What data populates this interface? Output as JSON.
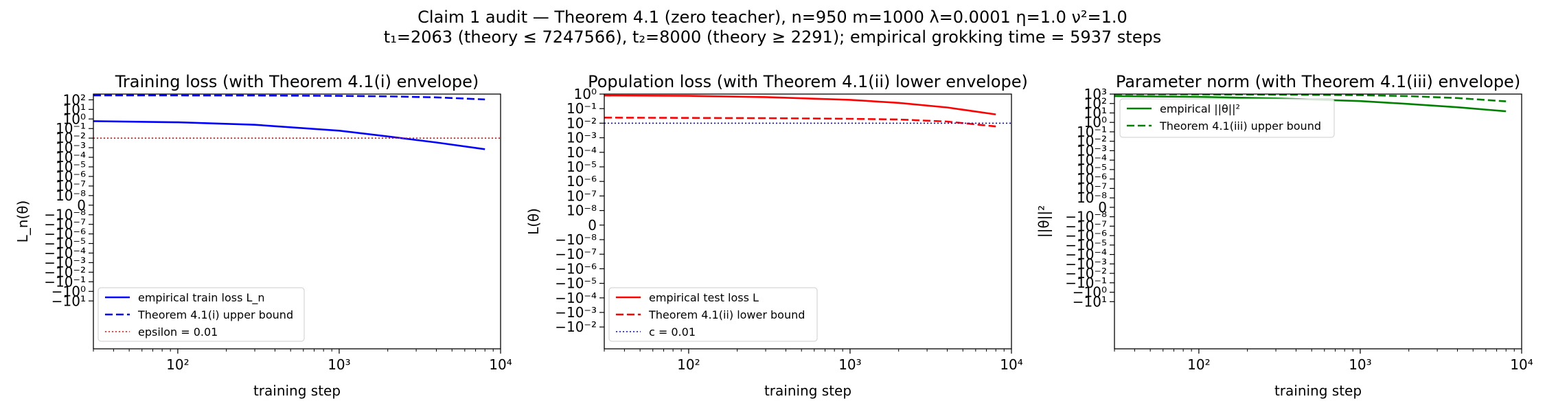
{
  "figure": {
    "suptitle_line1": "Claim 1 audit — Theorem 4.1 (zero teacher), n=950 m=1000 λ=0.0001 η=1.0 ν²=1.0",
    "suptitle_line2": "t₁=2063 (theory ≤ 7247566), t₂=8000 (theory ≥ 2291); empirical grokking time = 5937 steps"
  },
  "chart_data": [
    {
      "type": "line",
      "title": "Training loss (with Theorem 4.1(i) envelope)",
      "xlabel": "training step",
      "ylabel": "L_n(θ)",
      "xscale": "log",
      "yscale": "symlog",
      "xlim": [
        30,
        10000
      ],
      "xticks": [
        {
          "value": 100,
          "label": "10²"
        },
        {
          "value": 1000,
          "label": "10³"
        },
        {
          "value": 10000,
          "label": "10⁴"
        }
      ],
      "yticks": [
        {
          "value": 100,
          "label": "10²"
        },
        {
          "value": 10,
          "label": "10¹"
        },
        {
          "value": 1,
          "label": "10⁰"
        },
        {
          "value": 0.1,
          "label": "10⁻¹"
        },
        {
          "value": 0.01,
          "label": "10⁻²"
        },
        {
          "value": 0.001,
          "label": "10⁻³"
        },
        {
          "value": 0.0001,
          "label": "10⁻⁴"
        },
        {
          "value": 1e-05,
          "label": "10⁻⁵"
        },
        {
          "value": 1e-06,
          "label": "10⁻⁶"
        },
        {
          "value": 1e-07,
          "label": "10⁻⁷"
        },
        {
          "value": 1e-08,
          "label": "10⁻⁸"
        },
        {
          "value": 0,
          "label": "0"
        },
        {
          "value": -1e-08,
          "label": "−10⁻⁸"
        },
        {
          "value": -1e-07,
          "label": "−10⁻⁷"
        },
        {
          "value": -1e-06,
          "label": "−10⁻⁶"
        },
        {
          "value": -1e-05,
          "label": "−10⁻⁵"
        },
        {
          "value": -0.0001,
          "label": "−10⁻⁴"
        },
        {
          "value": -0.001,
          "label": "−10⁻³"
        },
        {
          "value": -0.01,
          "label": "−10⁻²"
        },
        {
          "value": -0.1,
          "label": "−10⁻¹"
        },
        {
          "value": -1,
          "label": "−10⁰"
        },
        {
          "value": -10,
          "label": "−10¹"
        }
      ],
      "legend_position": "lower-left",
      "series": [
        {
          "name": "empirical train loss L_n",
          "color": "#0000ff",
          "style": "solid",
          "x": [
            30,
            100,
            300,
            1000,
            2000,
            4000,
            8000
          ],
          "y": [
            0.6,
            0.45,
            0.25,
            0.06,
            0.015,
            0.0035,
            0.0007
          ]
        },
        {
          "name": "Theorem 4.1(i) upper bound",
          "color": "#0000ff",
          "style": "dashed",
          "x": [
            30,
            100,
            300,
            1000,
            2000,
            4000,
            8000
          ],
          "y": [
            290,
            288,
            280,
            260,
            230,
            180,
            110
          ]
        },
        {
          "name": "epsilon = 0.01",
          "color": "#ff0000",
          "style": "dotted",
          "x": [
            30,
            10000
          ],
          "y": [
            0.01,
            0.01
          ]
        }
      ]
    },
    {
      "type": "line",
      "title": "Population loss (with Theorem 4.1(ii) lower envelope)",
      "xlabel": "training step",
      "ylabel": "L(θ)",
      "xscale": "log",
      "yscale": "symlog",
      "xlim": [
        30,
        10000
      ],
      "xticks": [
        {
          "value": 100,
          "label": "10²"
        },
        {
          "value": 1000,
          "label": "10³"
        },
        {
          "value": 10000,
          "label": "10⁴"
        }
      ],
      "yticks": [
        {
          "value": 1,
          "label": "10⁰"
        },
        {
          "value": 0.1,
          "label": "10⁻¹"
        },
        {
          "value": 0.01,
          "label": "10⁻²"
        },
        {
          "value": 0.001,
          "label": "10⁻³"
        },
        {
          "value": 0.0001,
          "label": "10⁻⁴"
        },
        {
          "value": 1e-05,
          "label": "10⁻⁵"
        },
        {
          "value": 1e-06,
          "label": "10⁻⁶"
        },
        {
          "value": 1e-07,
          "label": "10⁻⁷"
        },
        {
          "value": 1e-08,
          "label": "10⁻⁸"
        },
        {
          "value": 0,
          "label": "0"
        },
        {
          "value": -1e-08,
          "label": "−10⁻⁸"
        },
        {
          "value": -1e-07,
          "label": "−10⁻⁷"
        },
        {
          "value": -1e-06,
          "label": "−10⁻⁶"
        },
        {
          "value": -1e-05,
          "label": "−10⁻⁵"
        },
        {
          "value": -0.0001,
          "label": "−10⁻⁴"
        },
        {
          "value": -0.001,
          "label": "−10⁻³"
        },
        {
          "value": -0.01,
          "label": "−10⁻²"
        }
      ],
      "legend_position": "lower-left",
      "series": [
        {
          "name": "empirical test loss L",
          "color": "#ff0000",
          "style": "solid",
          "x": [
            30,
            100,
            300,
            1000,
            2000,
            4000,
            8000
          ],
          "y": [
            0.8,
            0.75,
            0.62,
            0.4,
            0.25,
            0.12,
            0.04
          ]
        },
        {
          "name": "Theorem 4.1(ii) lower bound",
          "color": "#ff0000",
          "style": "dashed",
          "x": [
            30,
            100,
            300,
            1000,
            2000,
            4000,
            8000
          ],
          "y": [
            0.024,
            0.023,
            0.022,
            0.02,
            0.018,
            0.013,
            0.006
          ]
        },
        {
          "name": "c = 0.01",
          "color": "#0000ff",
          "style": "dotted",
          "x": [
            30,
            10000
          ],
          "y": [
            0.01,
            0.01
          ]
        }
      ]
    },
    {
      "type": "line",
      "title": "Parameter norm (with Theorem 4.1(iii) envelope)",
      "xlabel": "training step",
      "ylabel": "||θ||²",
      "xscale": "log",
      "yscale": "symlog",
      "xlim": [
        30,
        10000
      ],
      "xticks": [
        {
          "value": 100,
          "label": "10²"
        },
        {
          "value": 1000,
          "label": "10³"
        },
        {
          "value": 10000,
          "label": "10⁴"
        }
      ],
      "yticks": [
        {
          "value": 1000,
          "label": "10³"
        },
        {
          "value": 100,
          "label": "10²"
        },
        {
          "value": 10,
          "label": "10¹"
        },
        {
          "value": 1,
          "label": "10⁰"
        },
        {
          "value": 0.1,
          "label": "10⁻¹"
        },
        {
          "value": 0.01,
          "label": "10⁻²"
        },
        {
          "value": 0.001,
          "label": "10⁻³"
        },
        {
          "value": 0.0001,
          "label": "10⁻⁴"
        },
        {
          "value": 1e-05,
          "label": "10⁻⁵"
        },
        {
          "value": 1e-06,
          "label": "10⁻⁶"
        },
        {
          "value": 1e-07,
          "label": "10⁻⁷"
        },
        {
          "value": 1e-08,
          "label": "10⁻⁸"
        },
        {
          "value": 0,
          "label": "0"
        },
        {
          "value": -1e-08,
          "label": "−10⁻⁸"
        },
        {
          "value": -1e-07,
          "label": "−10⁻⁷"
        },
        {
          "value": -1e-06,
          "label": "−10⁻⁶"
        },
        {
          "value": -1e-05,
          "label": "−10⁻⁵"
        },
        {
          "value": -0.0001,
          "label": "−10⁻⁴"
        },
        {
          "value": -0.001,
          "label": "−10⁻³"
        },
        {
          "value": -0.01,
          "label": "−10⁻²"
        },
        {
          "value": -0.1,
          "label": "−10⁻¹"
        },
        {
          "value": -1,
          "label": "−10⁰"
        },
        {
          "value": -10,
          "label": "−10¹"
        }
      ],
      "legend_position": "upper-left",
      "series": [
        {
          "name": "empirical ||θ||²",
          "color": "#008000",
          "style": "solid",
          "x": [
            30,
            100,
            300,
            1000,
            2000,
            4000,
            8000
          ],
          "y": [
            600,
            500,
            350,
            180,
            90,
            40,
            15
          ]
        },
        {
          "name": "Theorem 4.1(iii) upper bound",
          "color": "#008000",
          "style": "dashed",
          "x": [
            30,
            100,
            300,
            1000,
            2000,
            4000,
            8000
          ],
          "y": [
            950,
            930,
            880,
            760,
            600,
            380,
            170
          ]
        }
      ]
    }
  ]
}
